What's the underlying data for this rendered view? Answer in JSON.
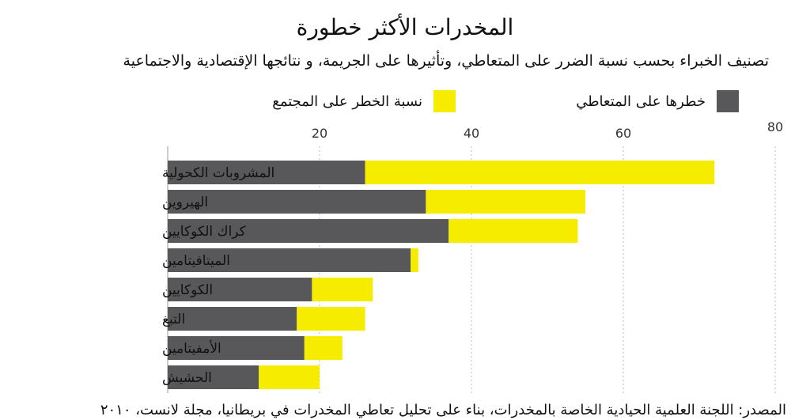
{
  "chart_data": {
    "type": "bar",
    "orientation": "horizontal",
    "stacked": true,
    "title": "المخدرات الأكثر خطورة",
    "subtitle": "تصنيف الخبراء بحسب  نسبة الضرر على المتعاطي، وتأثيرها على الجريمة، و نتائجها الإقتصادية والاجتماعية",
    "categories": [
      "المشروبات الكحولية",
      "الهيروين",
      "كراك الكوكايين",
      "الميتافيتامين",
      "الكوكايين",
      "التبغ",
      "الأمفيتامين",
      "الحشيش"
    ],
    "series": [
      {
        "name": "خطرها على المتعاطي",
        "color": "#58585a",
        "values": [
          26,
          34,
          37,
          32,
          19,
          17,
          18,
          12
        ]
      },
      {
        "name": "نسبة الخطر على المجتمع",
        "color": "#f5ec00",
        "values": [
          46,
          21,
          17,
          1,
          8,
          9,
          5,
          8
        ]
      }
    ],
    "xlim": [
      0,
      80
    ],
    "xticks": [
      20,
      40,
      60,
      80
    ],
    "grid": "vertical dotted",
    "legend_placement": "top",
    "source": "المصدر: اللجنة العلمية الحيادية الخاصة بالمخدرات، بناء على تحليل تعاطي المخدرات في بريطانيا، مجلة لانست، ٢٠١٠"
  }
}
